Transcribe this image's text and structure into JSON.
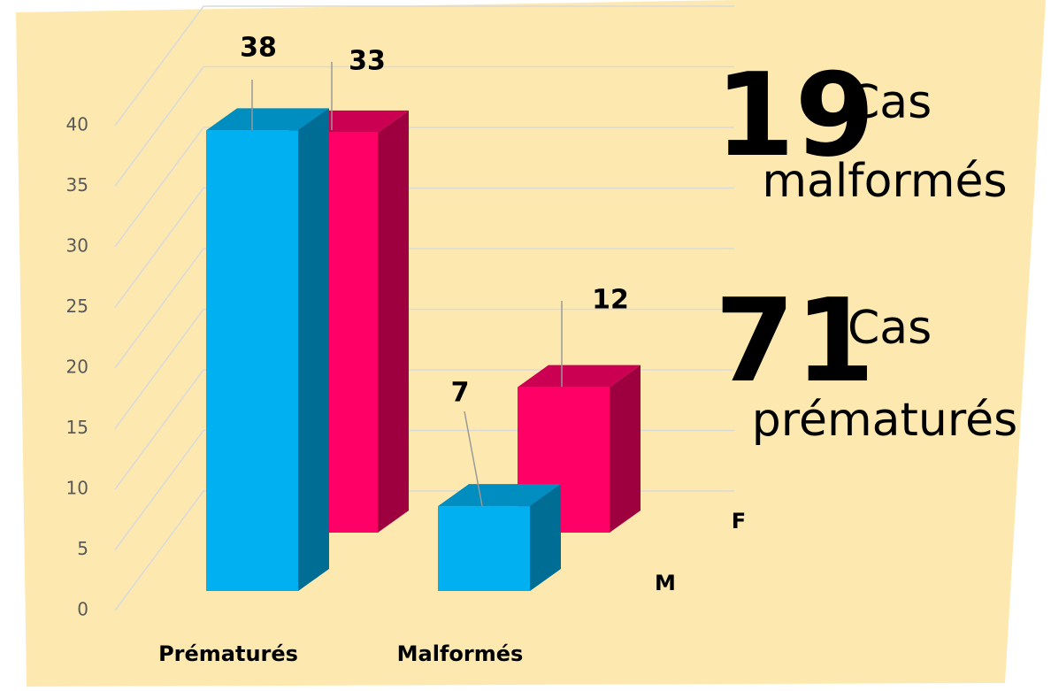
{
  "chart_data": {
    "type": "bar3d",
    "categories": [
      "Prématurés",
      "Malformés"
    ],
    "series": [
      {
        "name": "M",
        "color": "#00b0f0",
        "values": [
          38,
          7
        ]
      },
      {
        "name": "F",
        "color": "#ff0066",
        "values": [
          33,
          12
        ]
      }
    ],
    "ylim": [
      0,
      40
    ],
    "yticks": [
      0,
      5,
      10,
      15,
      20,
      25,
      30,
      35,
      40
    ],
    "grid": true,
    "annotations": [
      {
        "number": 19,
        "word": "Cas",
        "label": "malformés"
      },
      {
        "number": 71,
        "word": "Cas",
        "label": "prématurés"
      }
    ]
  }
}
